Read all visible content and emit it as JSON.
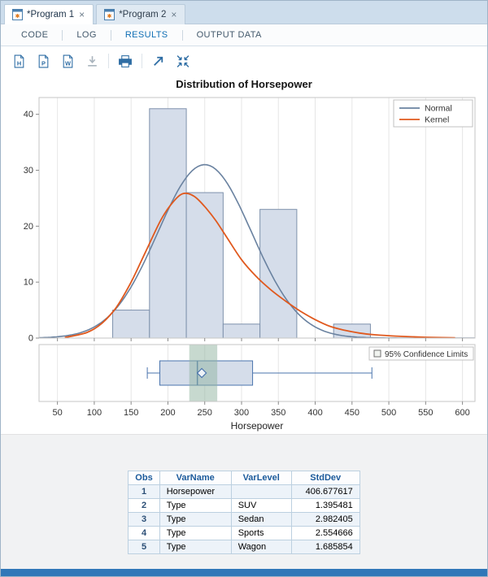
{
  "tabs": [
    {
      "label": "*Program 1",
      "active": true
    },
    {
      "label": "*Program 2",
      "active": false
    }
  ],
  "icons": {
    "close": "×"
  },
  "view_tabs": {
    "items": [
      {
        "label": "CODE",
        "active": false
      },
      {
        "label": "LOG",
        "active": false
      },
      {
        "label": "RESULTS",
        "active": true
      },
      {
        "label": "OUTPUT DATA",
        "active": false
      }
    ]
  },
  "toolbar": {
    "badges": {
      "html": "H",
      "pdf": "P",
      "rtf": "W"
    }
  },
  "chart_data": {
    "type": "histogram+density+boxplot",
    "title": "Distribution of Horsepower",
    "xlabel": "Horsepower",
    "x_range": [
      25,
      617
    ],
    "x_ticks": [
      50,
      100,
      150,
      200,
      250,
      300,
      350,
      400,
      450,
      500,
      550,
      600
    ],
    "hist": {
      "y_ticks": [
        0,
        10,
        20,
        30,
        40
      ],
      "y_max": 43,
      "bins": [
        {
          "x0": 125,
          "x1": 175,
          "y": 5
        },
        {
          "x0": 175,
          "x1": 225,
          "y": 41
        },
        {
          "x0": 225,
          "x1": 275,
          "y": 26
        },
        {
          "x0": 275,
          "x1": 325,
          "y": 2.5
        },
        {
          "x0": 325,
          "x1": 375,
          "y": 23
        },
        {
          "x0": 425,
          "x1": 475,
          "y": 2.5
        }
      ]
    },
    "normal_curve": {
      "mean": 250,
      "sd": 64,
      "peak": 31
    },
    "kernel_curve": {
      "points": [
        [
          60,
          0.1
        ],
        [
          90,
          1
        ],
        [
          110,
          2.6
        ],
        [
          130,
          5.5
        ],
        [
          150,
          10
        ],
        [
          170,
          15.5
        ],
        [
          190,
          21
        ],
        [
          205,
          24
        ],
        [
          220,
          25.8
        ],
        [
          235,
          25.4
        ],
        [
          250,
          23.5
        ],
        [
          265,
          21
        ],
        [
          280,
          18
        ],
        [
          300,
          14
        ],
        [
          320,
          11
        ],
        [
          340,
          8.6
        ],
        [
          360,
          6.6
        ],
        [
          380,
          4.8
        ],
        [
          400,
          3.3
        ],
        [
          420,
          2.1
        ],
        [
          440,
          1.4
        ],
        [
          460,
          0.9
        ],
        [
          480,
          0.6
        ],
        [
          510,
          0.35
        ],
        [
          550,
          0.15
        ],
        [
          590,
          0.05
        ]
      ]
    },
    "legend": [
      {
        "label": "Normal",
        "color": "#6a82a0"
      },
      {
        "label": "Kernel",
        "color": "#e0591e"
      }
    ],
    "boxplot": {
      "min": 172,
      "q1": 189,
      "median": 240,
      "q3": 315,
      "max": 477,
      "mean": 246,
      "ci": [
        229,
        267
      ],
      "legend_label": "95% Confidence Limits"
    },
    "colors": {
      "bar_fill": "#d5ddea",
      "bar_stroke": "#7e91ac",
      "normal": "#6a82a0",
      "kernel": "#e0591e",
      "grid": "#e6e6e6",
      "frame": "#c6c6c6",
      "axis": "#8a8a8a",
      "text": "#333333",
      "box_stroke": "#4a74ad",
      "ci_fill": "#8fb4a0"
    }
  },
  "table": {
    "columns": [
      "Obs",
      "VarName",
      "VarLevel",
      "StdDev"
    ],
    "rows": [
      [
        "1",
        "Horsepower",
        "",
        "406.677617"
      ],
      [
        "2",
        "Type",
        "SUV",
        "1.395481"
      ],
      [
        "3",
        "Type",
        "Sedan",
        "2.982405"
      ],
      [
        "4",
        "Type",
        "Sports",
        "2.554666"
      ],
      [
        "5",
        "Type",
        "Wagon",
        "1.685854"
      ]
    ]
  }
}
